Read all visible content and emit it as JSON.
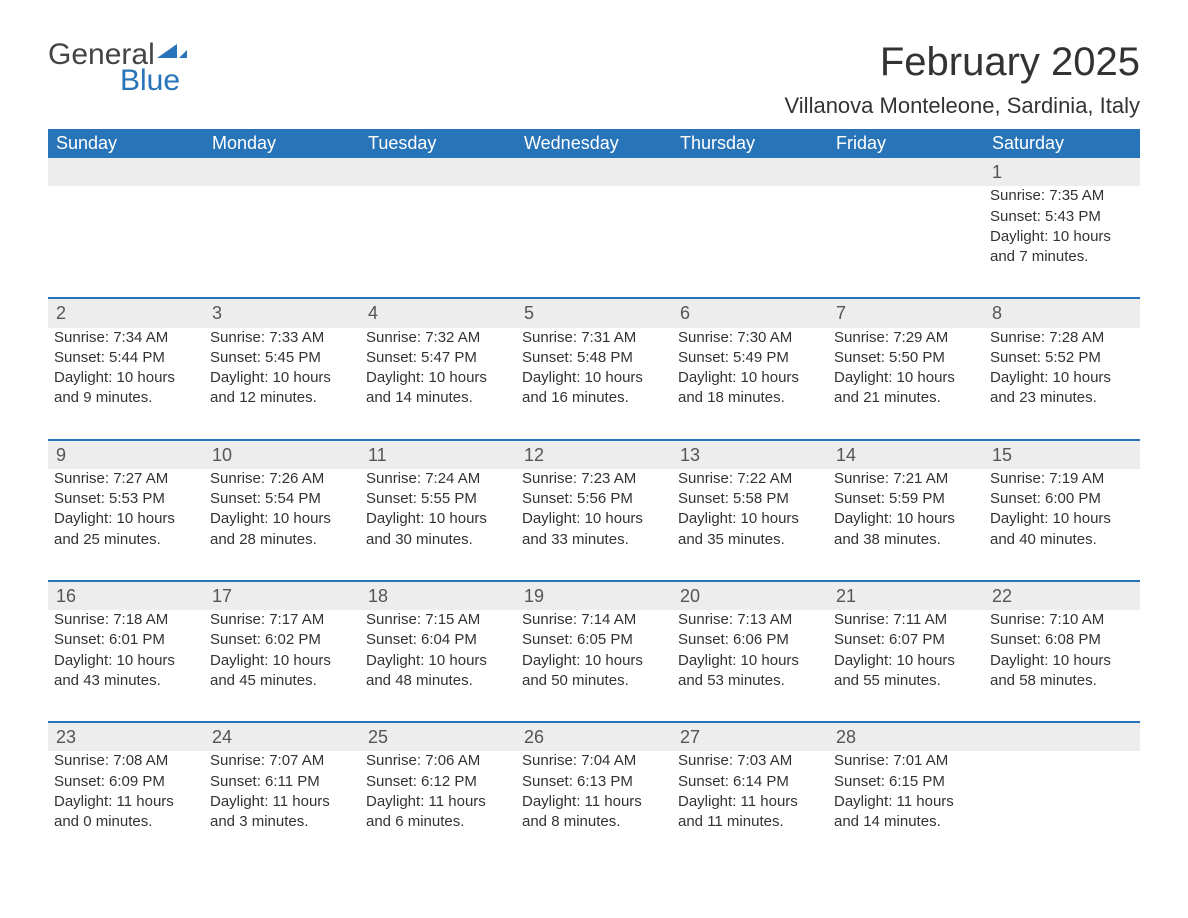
{
  "logo": {
    "word1": "General",
    "word2": "Blue"
  },
  "title": "February 2025",
  "location": "Villanova Monteleone, Sardinia, Italy",
  "colors": {
    "header_bg": "#2874b8",
    "header_text": "#ffffff",
    "daynum_bg": "#ededed",
    "row_border": "#2874b8",
    "text": "#333333",
    "logo_blue": "#2874b8"
  },
  "typography": {
    "title_fontsize": 40,
    "location_fontsize": 22,
    "weekday_fontsize": 18,
    "daynum_fontsize": 18,
    "body_fontsize": 15,
    "font_family": "Segoe UI"
  },
  "weekdays": [
    "Sunday",
    "Monday",
    "Tuesday",
    "Wednesday",
    "Thursday",
    "Friday",
    "Saturday"
  ],
  "weeks": [
    [
      null,
      null,
      null,
      null,
      null,
      null,
      {
        "n": "1",
        "sunrise": "Sunrise: 7:35 AM",
        "sunset": "Sunset: 5:43 PM",
        "daylight": "Daylight: 10 hours and 7 minutes."
      }
    ],
    [
      {
        "n": "2",
        "sunrise": "Sunrise: 7:34 AM",
        "sunset": "Sunset: 5:44 PM",
        "daylight": "Daylight: 10 hours and 9 minutes."
      },
      {
        "n": "3",
        "sunrise": "Sunrise: 7:33 AM",
        "sunset": "Sunset: 5:45 PM",
        "daylight": "Daylight: 10 hours and 12 minutes."
      },
      {
        "n": "4",
        "sunrise": "Sunrise: 7:32 AM",
        "sunset": "Sunset: 5:47 PM",
        "daylight": "Daylight: 10 hours and 14 minutes."
      },
      {
        "n": "5",
        "sunrise": "Sunrise: 7:31 AM",
        "sunset": "Sunset: 5:48 PM",
        "daylight": "Daylight: 10 hours and 16 minutes."
      },
      {
        "n": "6",
        "sunrise": "Sunrise: 7:30 AM",
        "sunset": "Sunset: 5:49 PM",
        "daylight": "Daylight: 10 hours and 18 minutes."
      },
      {
        "n": "7",
        "sunrise": "Sunrise: 7:29 AM",
        "sunset": "Sunset: 5:50 PM",
        "daylight": "Daylight: 10 hours and 21 minutes."
      },
      {
        "n": "8",
        "sunrise": "Sunrise: 7:28 AM",
        "sunset": "Sunset: 5:52 PM",
        "daylight": "Daylight: 10 hours and 23 minutes."
      }
    ],
    [
      {
        "n": "9",
        "sunrise": "Sunrise: 7:27 AM",
        "sunset": "Sunset: 5:53 PM",
        "daylight": "Daylight: 10 hours and 25 minutes."
      },
      {
        "n": "10",
        "sunrise": "Sunrise: 7:26 AM",
        "sunset": "Sunset: 5:54 PM",
        "daylight": "Daylight: 10 hours and 28 minutes."
      },
      {
        "n": "11",
        "sunrise": "Sunrise: 7:24 AM",
        "sunset": "Sunset: 5:55 PM",
        "daylight": "Daylight: 10 hours and 30 minutes."
      },
      {
        "n": "12",
        "sunrise": "Sunrise: 7:23 AM",
        "sunset": "Sunset: 5:56 PM",
        "daylight": "Daylight: 10 hours and 33 minutes."
      },
      {
        "n": "13",
        "sunrise": "Sunrise: 7:22 AM",
        "sunset": "Sunset: 5:58 PM",
        "daylight": "Daylight: 10 hours and 35 minutes."
      },
      {
        "n": "14",
        "sunrise": "Sunrise: 7:21 AM",
        "sunset": "Sunset: 5:59 PM",
        "daylight": "Daylight: 10 hours and 38 minutes."
      },
      {
        "n": "15",
        "sunrise": "Sunrise: 7:19 AM",
        "sunset": "Sunset: 6:00 PM",
        "daylight": "Daylight: 10 hours and 40 minutes."
      }
    ],
    [
      {
        "n": "16",
        "sunrise": "Sunrise: 7:18 AM",
        "sunset": "Sunset: 6:01 PM",
        "daylight": "Daylight: 10 hours and 43 minutes."
      },
      {
        "n": "17",
        "sunrise": "Sunrise: 7:17 AM",
        "sunset": "Sunset: 6:02 PM",
        "daylight": "Daylight: 10 hours and 45 minutes."
      },
      {
        "n": "18",
        "sunrise": "Sunrise: 7:15 AM",
        "sunset": "Sunset: 6:04 PM",
        "daylight": "Daylight: 10 hours and 48 minutes."
      },
      {
        "n": "19",
        "sunrise": "Sunrise: 7:14 AM",
        "sunset": "Sunset: 6:05 PM",
        "daylight": "Daylight: 10 hours and 50 minutes."
      },
      {
        "n": "20",
        "sunrise": "Sunrise: 7:13 AM",
        "sunset": "Sunset: 6:06 PM",
        "daylight": "Daylight: 10 hours and 53 minutes."
      },
      {
        "n": "21",
        "sunrise": "Sunrise: 7:11 AM",
        "sunset": "Sunset: 6:07 PM",
        "daylight": "Daylight: 10 hours and 55 minutes."
      },
      {
        "n": "22",
        "sunrise": "Sunrise: 7:10 AM",
        "sunset": "Sunset: 6:08 PM",
        "daylight": "Daylight: 10 hours and 58 minutes."
      }
    ],
    [
      {
        "n": "23",
        "sunrise": "Sunrise: 7:08 AM",
        "sunset": "Sunset: 6:09 PM",
        "daylight": "Daylight: 11 hours and 0 minutes."
      },
      {
        "n": "24",
        "sunrise": "Sunrise: 7:07 AM",
        "sunset": "Sunset: 6:11 PM",
        "daylight": "Daylight: 11 hours and 3 minutes."
      },
      {
        "n": "25",
        "sunrise": "Sunrise: 7:06 AM",
        "sunset": "Sunset: 6:12 PM",
        "daylight": "Daylight: 11 hours and 6 minutes."
      },
      {
        "n": "26",
        "sunrise": "Sunrise: 7:04 AM",
        "sunset": "Sunset: 6:13 PM",
        "daylight": "Daylight: 11 hours and 8 minutes."
      },
      {
        "n": "27",
        "sunrise": "Sunrise: 7:03 AM",
        "sunset": "Sunset: 6:14 PM",
        "daylight": "Daylight: 11 hours and 11 minutes."
      },
      {
        "n": "28",
        "sunrise": "Sunrise: 7:01 AM",
        "sunset": "Sunset: 6:15 PM",
        "daylight": "Daylight: 11 hours and 14 minutes."
      },
      null
    ]
  ]
}
